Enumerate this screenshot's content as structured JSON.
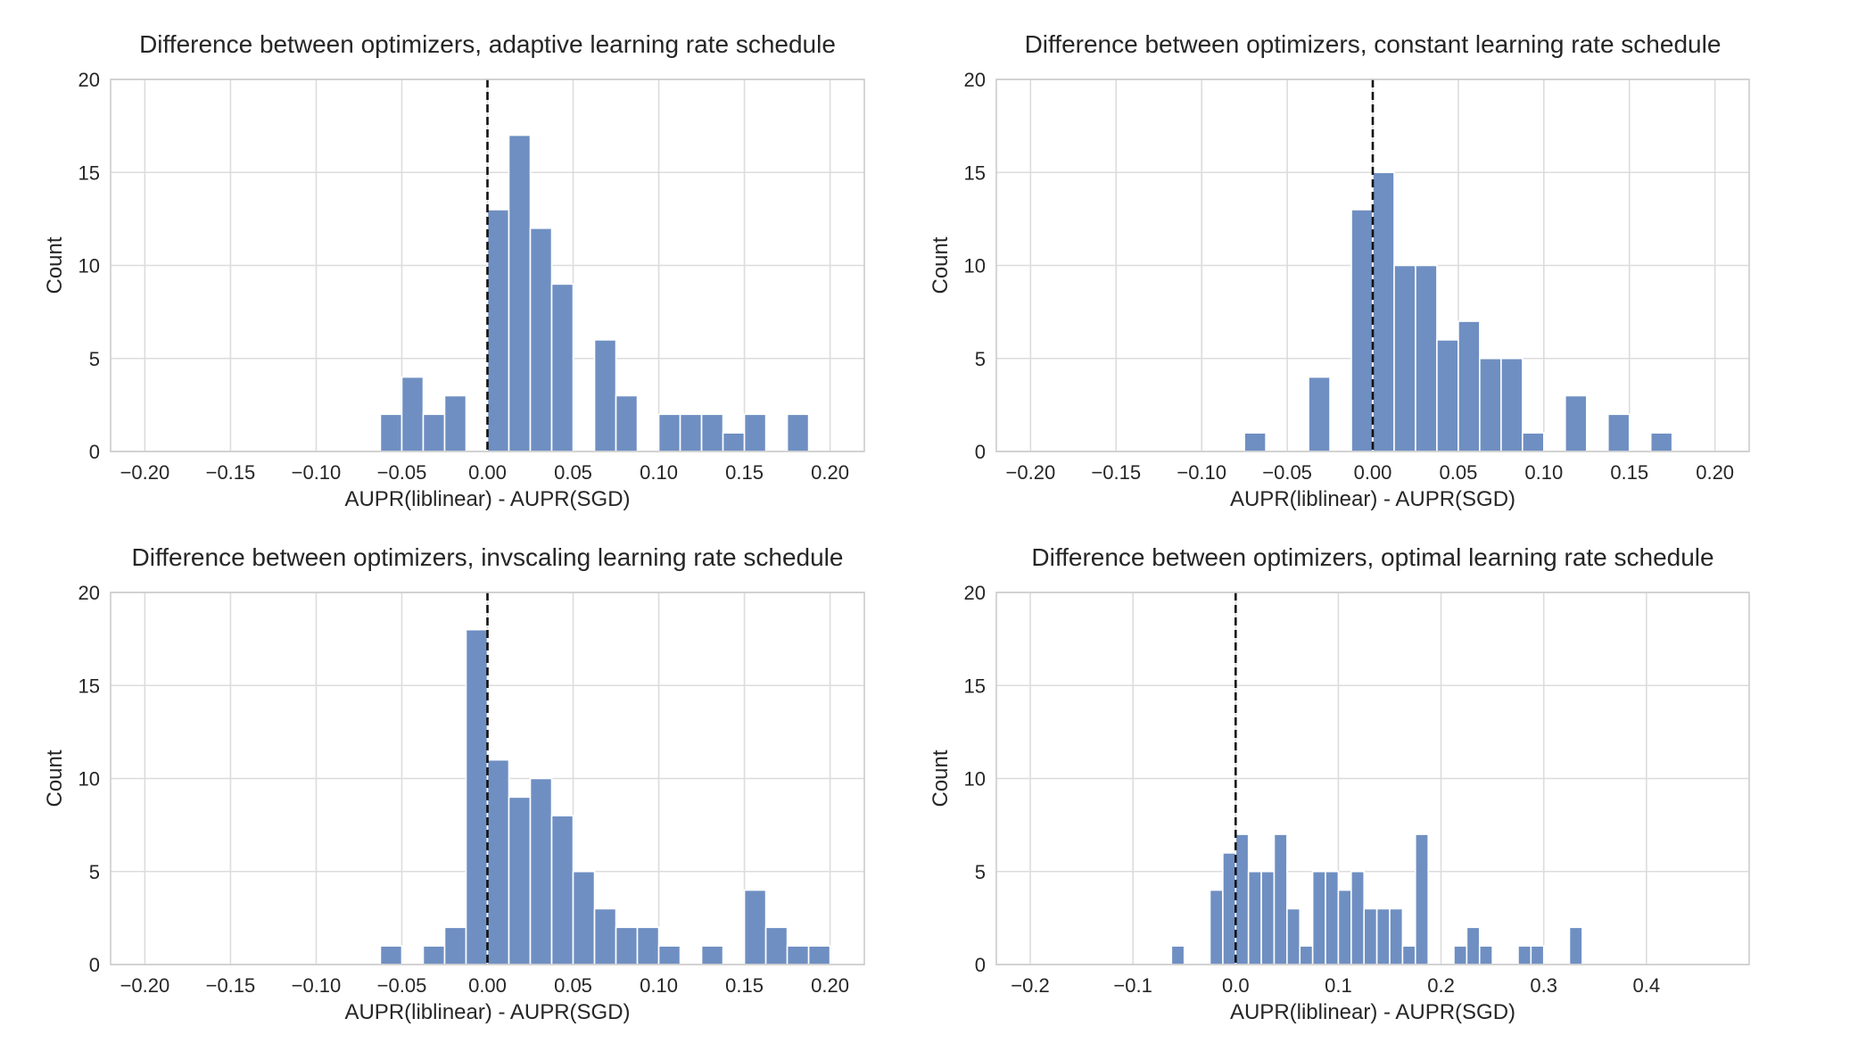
{
  "chart_data": [
    {
      "type": "bar",
      "subtype": "histogram",
      "title": "Difference between optimizers, adaptive learning rate schedule",
      "xlabel": "AUPR(liblinear) - AUPR(SGD)",
      "ylabel": "Count",
      "xlim": [
        -0.22,
        0.22
      ],
      "ylim": [
        0,
        20
      ],
      "xticks": [
        -0.2,
        -0.15,
        -0.1,
        -0.05,
        0.0,
        0.05,
        0.1,
        0.15,
        0.2
      ],
      "xtick_labels": [
        "−0.20",
        "−0.15",
        "−0.10",
        "−0.05",
        "0.00",
        "0.05",
        "0.10",
        "0.15",
        "0.20"
      ],
      "yticks": [
        0,
        5,
        10,
        15,
        20
      ],
      "ytick_labels": [
        "0",
        "5",
        "10",
        "15",
        "20"
      ],
      "bin_width": 0.0125,
      "bin_start": -0.0625,
      "counts": [
        2,
        4,
        2,
        3,
        0,
        13,
        17,
        12,
        9,
        0,
        6,
        3,
        0,
        2,
        2,
        2,
        1,
        2,
        0,
        2
      ],
      "reference_line": {
        "x": 0.0,
        "style": "dashed"
      },
      "grid": true,
      "bar_color": "#6f8fc2"
    },
    {
      "type": "bar",
      "subtype": "histogram",
      "title": "Difference between optimizers, constant learning rate schedule",
      "xlabel": "AUPR(liblinear) - AUPR(SGD)",
      "ylabel": "Count",
      "xlim": [
        -0.22,
        0.22
      ],
      "ylim": [
        0,
        20
      ],
      "xticks": [
        -0.2,
        -0.15,
        -0.1,
        -0.05,
        0.0,
        0.05,
        0.1,
        0.15,
        0.2
      ],
      "xtick_labels": [
        "−0.20",
        "−0.15",
        "−0.10",
        "−0.05",
        "0.00",
        "0.05",
        "0.10",
        "0.15",
        "0.20"
      ],
      "yticks": [
        0,
        5,
        10,
        15,
        20
      ],
      "ytick_labels": [
        "0",
        "5",
        "10",
        "15",
        "20"
      ],
      "bin_width": 0.0125,
      "bin_start": -0.075,
      "counts": [
        1,
        0,
        0,
        4,
        0,
        13,
        15,
        10,
        10,
        6,
        7,
        5,
        5,
        1,
        0,
        3,
        0,
        2,
        0,
        1
      ],
      "reference_line": {
        "x": 0.0,
        "style": "dashed"
      },
      "grid": true,
      "bar_color": "#6f8fc2"
    },
    {
      "type": "bar",
      "subtype": "histogram",
      "title": "Difference between optimizers, invscaling learning rate schedule",
      "xlabel": "AUPR(liblinear) - AUPR(SGD)",
      "ylabel": "Count",
      "xlim": [
        -0.22,
        0.22
      ],
      "ylim": [
        0,
        20
      ],
      "xticks": [
        -0.2,
        -0.15,
        -0.1,
        -0.05,
        0.0,
        0.05,
        0.1,
        0.15,
        0.2
      ],
      "xtick_labels": [
        "−0.20",
        "−0.15",
        "−0.10",
        "−0.05",
        "0.00",
        "0.05",
        "0.10",
        "0.15",
        "0.20"
      ],
      "yticks": [
        0,
        5,
        10,
        15,
        20
      ],
      "ytick_labels": [
        "0",
        "5",
        "10",
        "15",
        "20"
      ],
      "bin_width": 0.0125,
      "bin_start": -0.0625,
      "counts": [
        1,
        0,
        1,
        2,
        18,
        11,
        9,
        10,
        8,
        5,
        3,
        2,
        2,
        1,
        0,
        1,
        0,
        4,
        2,
        1,
        1
      ],
      "reference_line": {
        "x": 0.0,
        "style": "dashed"
      },
      "grid": true,
      "bar_color": "#6f8fc2"
    },
    {
      "type": "bar",
      "subtype": "histogram",
      "title": "Difference between optimizers, optimal learning rate schedule",
      "xlabel": "AUPR(liblinear) - AUPR(SGD)",
      "ylabel": "Count",
      "xlim": [
        -0.233,
        0.5
      ],
      "ylim": [
        0,
        20
      ],
      "xticks": [
        -0.2,
        -0.1,
        0.0,
        0.1,
        0.2,
        0.3,
        0.4
      ],
      "xtick_labels": [
        "−0.2",
        "−0.1",
        "0.0",
        "0.1",
        "0.2",
        "0.3",
        "0.4"
      ],
      "yticks": [
        0,
        5,
        10,
        15,
        20
      ],
      "ytick_labels": [
        "0",
        "5",
        "10",
        "15",
        "20"
      ],
      "bin_width": 0.0125,
      "bin_start": -0.0625,
      "counts": [
        1,
        0,
        0,
        4,
        6,
        7,
        5,
        5,
        7,
        3,
        1,
        5,
        5,
        4,
        5,
        3,
        3,
        3,
        1,
        7,
        0,
        0,
        1,
        2,
        1,
        0,
        0,
        1,
        1,
        0,
        0,
        2
      ],
      "reference_line": {
        "x": 0.0,
        "style": "dashed"
      },
      "grid": true,
      "bar_color": "#6f8fc2"
    }
  ]
}
